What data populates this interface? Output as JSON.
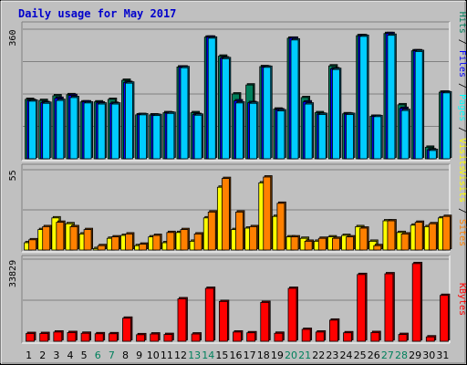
{
  "chart_data": {
    "type": "bar",
    "title": "Daily usage for May 2017",
    "categories": [
      "1",
      "2",
      "3",
      "4",
      "5",
      "6",
      "7",
      "8",
      "9",
      "10",
      "11",
      "12",
      "13",
      "14",
      "15",
      "16",
      "17",
      "18",
      "19",
      "20",
      "21",
      "22",
      "23",
      "24",
      "25",
      "26",
      "27",
      "28",
      "29",
      "30",
      "31"
    ],
    "weekend_days": [
      "6",
      "7",
      "13",
      "14",
      "20",
      "21",
      "27",
      "28"
    ],
    "panels": [
      {
        "id": "top",
        "ymax_label": "360",
        "ylim": [
          0,
          360
        ],
        "right_label": [
          {
            "text": "Hits",
            "color": "#00805c"
          },
          {
            "text": " / ",
            "color": "#000000"
          },
          {
            "text": "Files",
            "color": "#0000ff"
          },
          {
            "text": " / ",
            "color": "#000000"
          },
          {
            "text": "Pages",
            "color": "#00ffff"
          },
          {
            "text": " / ",
            "color": "#000000"
          },
          {
            "text": "Visits",
            "color": "#ffff00"
          }
        ],
        "series": [
          {
            "name": "Hits",
            "color": "#00805c",
            "values": [
              165,
              162,
              175,
              178,
              158,
              158,
              165,
              218,
              122,
              122,
              128,
              255,
              128,
              338,
              285,
              180,
              205,
              256,
              138,
              335,
              170,
              128,
              258,
              125,
              342,
              118,
              348,
              150,
              300,
              32,
              185
            ]
          },
          {
            "name": "Files",
            "color": "#0000ff",
            "values": [
              162,
              156,
              168,
              176,
              158,
              155,
              154,
              212,
              123,
              121,
              127,
              255,
              123,
              338,
              280,
              161,
              156,
              255,
              136,
              335,
              158,
              124,
              250,
              124,
              342,
              118,
              348,
              140,
              300,
              25,
              185
            ]
          },
          {
            "name": "Pages",
            "color": "#00ccff",
            "values": [
              160,
              154,
              162,
              170,
              155,
              152,
              152,
              210,
              122,
              120,
              126,
              253,
              121,
              335,
              278,
              155,
              154,
              254,
              133,
              330,
              152,
              123,
              248,
              123,
              340,
              117,
              343,
              134,
              298,
              23,
              183
            ]
          }
        ]
      },
      {
        "id": "middle",
        "ymax_label": "55",
        "ylim": [
          0,
          55
        ],
        "right_label": [
          {
            "text": "Visits",
            "color": "#ffff00"
          },
          {
            "text": " / ",
            "color": "#000000"
          },
          {
            "text": "Sites",
            "color": "#ff8000"
          }
        ],
        "series": [
          {
            "name": "Visits",
            "color": "#ffff00",
            "values": [
              5,
              14,
              22,
              18,
              11,
              1,
              8,
              10,
              3,
              9,
              5,
              12,
              6,
              22,
              43,
              14,
              15,
              46,
              23,
              9,
              8,
              6,
              9,
              10,
              16,
              6,
              20,
              12,
              17,
              16,
              22
            ]
          },
          {
            "name": "Sites",
            "color": "#ff8000",
            "values": [
              7,
              16,
              19,
              16,
              14,
              3,
              9,
              11,
              4,
              10,
              12,
              14,
              11,
              26,
              49,
              26,
              16,
              50,
              32,
              9,
              6,
              8,
              8,
              9,
              15,
              3,
              20,
              11,
              19,
              18,
              23
            ]
          }
        ]
      },
      {
        "id": "bottom",
        "ymax_label": "33829",
        "ylim": [
          0,
          33829
        ],
        "right_label": [
          {
            "text": "KBytes",
            "color": "#ff0000"
          }
        ],
        "series": [
          {
            "name": "KBytes",
            "color": "#ff0000",
            "values": [
              3200,
              3200,
              3800,
              3600,
              3300,
              3100,
              3100,
              9500,
              2700,
              3000,
              2800,
              17500,
              3000,
              21800,
              16400,
              3800,
              3500,
              16000,
              3300,
              21800,
              4900,
              3800,
              8700,
              3500,
              27500,
              3600,
              27800,
              2800,
              32000,
              1800,
              18900
            ]
          }
        ]
      }
    ]
  }
}
